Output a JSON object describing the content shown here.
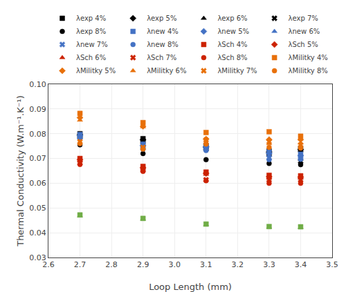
{
  "chart_data": {
    "type": "scatter",
    "xlabel": "Loop Length (mm)",
    "ylabel": "Thermal Conductivity (W.m⁻¹.K⁻¹)",
    "x": [
      2.7,
      2.9,
      3.1,
      3.3,
      3.4
    ],
    "series": [
      {
        "name": "λexp 4%",
        "color": "#000000",
        "marker": "square",
        "values": [
          0.08,
          0.078,
          0.075,
          0.073,
          0.074
        ]
      },
      {
        "name": "λexp 5%",
        "color": "#000000",
        "marker": "diamond",
        "values": [
          0.0796,
          0.0776,
          0.0746,
          0.0726,
          0.0736
        ]
      },
      {
        "name": "λexp 6%",
        "color": "#000000",
        "marker": "triangle-up",
        "values": [
          0.0792,
          0.0772,
          0.0742,
          0.0722,
          0.0732
        ]
      },
      {
        "name": "λexp 7%",
        "color": "#000000",
        "marker": "x",
        "values": [
          0.0788,
          0.0768,
          0.0738,
          0.0718,
          0.0688
        ]
      },
      {
        "name": "λexp 8%",
        "color": "#000000",
        "marker": "circle",
        "values": [
          0.0755,
          0.072,
          0.0695,
          0.068,
          0.0675
        ]
      },
      {
        "name": "λnew 4%",
        "color": "#4472C4",
        "marker": "square",
        "values": [
          0.0797,
          0.0758,
          0.0751,
          0.0727,
          0.0717
        ]
      },
      {
        "name": "λnew 5%",
        "color": "#4472C4",
        "marker": "diamond",
        "values": [
          0.0793,
          0.0753,
          0.0747,
          0.072,
          0.0712
        ]
      },
      {
        "name": "λnew 6%",
        "color": "#4472C4",
        "marker": "triangle-up",
        "values": [
          0.0789,
          0.0748,
          0.0743,
          0.0712,
          0.0707
        ]
      },
      {
        "name": "λnew 7%",
        "color": "#4472C4",
        "marker": "x",
        "values": [
          0.0785,
          0.0743,
          0.0738,
          0.0703,
          0.0702
        ]
      },
      {
        "name": "λnew 8%",
        "color": "#4472C4",
        "marker": "circle",
        "values": [
          0.0781,
          0.0738,
          0.0732,
          0.0695,
          0.0697
        ]
      },
      {
        "name": "λSch 4%",
        "color": "#CC2200",
        "marker": "square",
        "values": [
          0.07,
          0.0668,
          0.0645,
          0.0632,
          0.063
        ]
      },
      {
        "name": "λSch 5%",
        "color": "#CC2200",
        "marker": "diamond",
        "values": [
          0.0695,
          0.0663,
          0.064,
          0.0626,
          0.0625
        ]
      },
      {
        "name": "λSch 6%",
        "color": "#CC2200",
        "marker": "triangle-up",
        "values": [
          0.069,
          0.0658,
          0.0636,
          0.062,
          0.062
        ]
      },
      {
        "name": "λSch 7%",
        "color": "#CC2200",
        "marker": "x",
        "values": [
          0.0682,
          0.0653,
          0.0614,
          0.0614,
          0.0614
        ]
      },
      {
        "name": "λSch 8%",
        "color": "#CC2200",
        "marker": "circle",
        "values": [
          0.0676,
          0.0648,
          0.061,
          0.06,
          0.06
        ]
      },
      {
        "name": "λMilitky 4%",
        "color": "#E8700A",
        "marker": "square",
        "values": [
          0.0882,
          0.0845,
          0.0805,
          0.0808,
          0.079
        ]
      },
      {
        "name": "λMilitky 5%",
        "color": "#E8700A",
        "marker": "diamond",
        "values": [
          0.0865,
          0.083,
          0.0778,
          0.0776,
          0.0776
        ]
      },
      {
        "name": "λMilitky 6%",
        "color": "#E8700A",
        "marker": "triangle-up",
        "values": [
          0.0855,
          0.0828,
          0.0765,
          0.076,
          0.0762
        ]
      },
      {
        "name": "λMilitky 7%",
        "color": "#E8700A",
        "marker": "x",
        "values": [
          0.0768,
          0.0745,
          0.0775,
          0.0768,
          0.0755
        ]
      },
      {
        "name": "λMilitky 8%",
        "color": "#E8700A",
        "marker": "circle",
        "values": [
          0.076,
          0.0738,
          0.0758,
          0.0745,
          0.0742
        ]
      },
      {
        "color": "#70AD47",
        "marker": "square",
        "values": [
          0.0472,
          0.0458,
          0.0435,
          0.0425,
          0.0424
        ]
      },
      {
        "color": "#70AD47",
        "marker": "triangle-up",
        "values": [
          0.0468,
          0.0455,
          0.0432,
          0.0422,
          0.0421
        ]
      }
    ],
    "xlim": [
      2.6,
      3.5
    ],
    "ylim": [
      0.03,
      0.1
    ],
    "xticks": [
      2.6,
      2.7,
      2.8,
      2.9,
      {
        "value": 3.0,
        "label": "3.0"
      },
      3.1,
      3.2,
      3.3,
      3.4,
      3.5
    ],
    "yticks": [
      0.03,
      0.04,
      0.05,
      0.06,
      0.07,
      0.08,
      0.09,
      {
        "value": 0.1,
        "label": "0.10"
      }
    ],
    "grid": true
  }
}
